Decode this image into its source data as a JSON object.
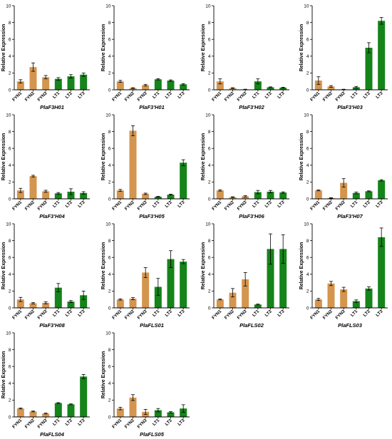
{
  "colors": {
    "FYN": "#D4954F",
    "LT": "#15841A"
  },
  "ylabel": "Relative Expression",
  "categories": [
    "FYN1",
    "FYN2",
    "FYN3",
    "LT1",
    "LT2",
    "LT3"
  ],
  "chart_data": [
    {
      "type": "bar",
      "title": "PlaF3H01",
      "ylim": [
        0,
        10
      ],
      "yticks": [
        0,
        2,
        4,
        6,
        8,
        10
      ],
      "values": [
        1.0,
        2.7,
        1.5,
        1.3,
        1.6,
        1.8
      ],
      "errors": [
        0.2,
        0.5,
        0.2,
        0.15,
        0.2,
        0.2
      ]
    },
    {
      "type": "bar",
      "title": "PlaF3'H01",
      "ylim": [
        0,
        10
      ],
      "yticks": [
        0,
        2,
        4,
        6,
        8,
        10
      ],
      "values": [
        1.0,
        0.2,
        0.55,
        1.25,
        1.1,
        0.65
      ],
      "errors": [
        0.12,
        0.05,
        0.1,
        0.08,
        0.08,
        0.08
      ]
    },
    {
      "type": "bar",
      "title": "PlaF3'H02",
      "ylim": [
        0,
        10
      ],
      "yticks": [
        0,
        2,
        4,
        6,
        8,
        10
      ],
      "values": [
        1.0,
        0.2,
        0.05,
        1.0,
        0.3,
        0.25
      ],
      "errors": [
        0.3,
        0.05,
        0.02,
        0.3,
        0.05,
        0.05
      ]
    },
    {
      "type": "bar",
      "title": "PlaF3'H03",
      "ylim": [
        0,
        10
      ],
      "yticks": [
        0,
        2,
        4,
        6,
        8,
        10
      ],
      "values": [
        1.1,
        0.4,
        0.05,
        0.3,
        5.0,
        8.2
      ],
      "errors": [
        0.45,
        0.1,
        0.02,
        0.1,
        0.6,
        0.4
      ]
    },
    {
      "type": "bar",
      "title": "PlaF3'H04",
      "ylim": [
        0,
        10
      ],
      "yticks": [
        0,
        2,
        4,
        6,
        8,
        10
      ],
      "values": [
        1.0,
        2.7,
        0.9,
        0.65,
        0.85,
        0.7
      ],
      "errors": [
        0.25,
        0.1,
        0.12,
        0.1,
        0.35,
        0.15
      ]
    },
    {
      "type": "bar",
      "title": "PlaF3'H05",
      "ylim": [
        0,
        10
      ],
      "yticks": [
        0,
        2,
        4,
        6,
        8,
        10
      ],
      "values": [
        1.0,
        8.1,
        0.6,
        0.25,
        0.5,
        4.3
      ],
      "errors": [
        0.12,
        0.6,
        0.08,
        0.05,
        0.05,
        0.35
      ]
    },
    {
      "type": "bar",
      "title": "PlaF3'H06",
      "ylim": [
        0,
        10
      ],
      "yticks": [
        0,
        2,
        4,
        6,
        8,
        10
      ],
      "values": [
        1.0,
        0.2,
        0.3,
        0.8,
        0.85,
        0.75
      ],
      "errors": [
        0.08,
        0.05,
        0.08,
        0.2,
        0.15,
        0.08
      ]
    },
    {
      "type": "bar",
      "title": "PlaF3'H07",
      "ylim": [
        0,
        10
      ],
      "yticks": [
        0,
        2,
        4,
        6,
        8,
        10
      ],
      "values": [
        1.0,
        0.1,
        1.9,
        0.7,
        0.9,
        2.2
      ],
      "errors": [
        0.05,
        0.03,
        0.5,
        0.1,
        0.05,
        0.08
      ]
    },
    {
      "type": "bar",
      "title": "PlaF3'H08",
      "ylim": [
        0,
        10
      ],
      "yticks": [
        0,
        2,
        4,
        6,
        8,
        10
      ],
      "values": [
        1.0,
        0.55,
        0.6,
        2.4,
        0.75,
        1.5
      ],
      "errors": [
        0.25,
        0.08,
        0.12,
        0.5,
        0.12,
        0.5
      ]
    },
    {
      "type": "bar",
      "title": "PlaFLS01",
      "ylim": [
        0,
        10
      ],
      "yticks": [
        0,
        2,
        4,
        6,
        8,
        10
      ],
      "values": [
        1.0,
        1.1,
        4.2,
        2.5,
        5.8,
        5.5
      ],
      "errors": [
        0.08,
        0.12,
        0.6,
        1.0,
        1.0,
        0.25
      ]
    },
    {
      "type": "bar",
      "title": "PlaFLS02",
      "ylim": [
        0,
        10
      ],
      "yticks": [
        0,
        2,
        4,
        6,
        8,
        10
      ],
      "values": [
        1.0,
        1.8,
        3.4,
        0.4,
        7.0,
        7.0
      ],
      "errors": [
        0.05,
        0.5,
        0.8,
        0.05,
        1.8,
        1.7
      ]
    },
    {
      "type": "bar",
      "title": "PlaFLS03",
      "ylim": [
        0,
        10
      ],
      "yticks": [
        0,
        2,
        4,
        6,
        8,
        10
      ],
      "values": [
        1.0,
        2.9,
        2.2,
        0.8,
        2.3,
        8.4
      ],
      "errors": [
        0.12,
        0.25,
        0.25,
        0.15,
        0.2,
        1.1
      ]
    },
    {
      "type": "bar",
      "title": "PlaFLS04",
      "ylim": [
        0,
        10
      ],
      "yticks": [
        0,
        2,
        4,
        6,
        8,
        10
      ],
      "values": [
        1.0,
        0.65,
        0.4,
        1.65,
        1.5,
        4.8
      ],
      "errors": [
        0.05,
        0.05,
        0.05,
        0.05,
        0.05,
        0.25
      ]
    },
    {
      "type": "bar",
      "title": "PlaFLS05",
      "ylim": [
        0,
        10
      ],
      "yticks": [
        0,
        2,
        4,
        6,
        8,
        10
      ],
      "values": [
        1.0,
        2.3,
        0.6,
        0.8,
        0.55,
        1.0
      ],
      "errors": [
        0.15,
        0.35,
        0.3,
        0.2,
        0.08,
        0.45
      ]
    }
  ]
}
